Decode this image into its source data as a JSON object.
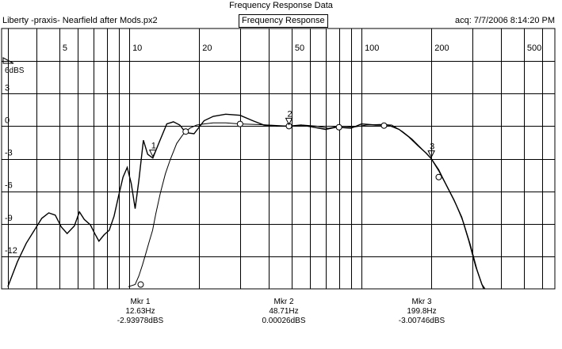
{
  "header": {
    "title": "Frequency Response Data",
    "file": "Liberty -praxis-  Nearfield after Mods.px2",
    "view": "Frequency Response",
    "acq": "acq: 7/7/2006 8:14:20 PM"
  },
  "markers": [
    {
      "label": "Mkr 1",
      "freq": "12.63Hz",
      "level": "-2.93978dBS",
      "num": "1",
      "x": 12.63,
      "y": -2.94
    },
    {
      "label": "Mkr 2",
      "freq": "48.71Hz",
      "level": "0.00026dBS",
      "num": "2",
      "x": 48.71,
      "y": 0.0
    },
    {
      "label": "Mkr 3",
      "freq": "199.8Hz",
      "level": "-3.00746dBS",
      "num": "3",
      "x": 199.8,
      "y": -3.01
    }
  ],
  "chart_data": {
    "type": "line",
    "x_scale": "log",
    "xlim": [
      2.82,
      680
    ],
    "ylim": [
      -15,
      9
    ],
    "ylabel": "6dBS",
    "x_ticks": [
      {
        "value": 5,
        "label": "5"
      },
      {
        "value": 10,
        "label": "10"
      },
      {
        "value": 20,
        "label": "20"
      },
      {
        "value": 50,
        "label": "50"
      },
      {
        "value": 100,
        "label": "100"
      },
      {
        "value": 200,
        "label": "200"
      },
      {
        "value": 500,
        "label": "500"
      }
    ],
    "y_ticks": [
      {
        "value": 3,
        "label": "3"
      },
      {
        "value": 0,
        "label": "0"
      },
      {
        "value": -3,
        "label": "-3"
      },
      {
        "value": -6,
        "label": "-6"
      },
      {
        "value": -9,
        "label": "-9"
      },
      {
        "value": -12,
        "label": "-12"
      }
    ],
    "grid": true,
    "series": [
      {
        "color": "#000000",
        "points": [
          [
            3.0,
            -14.8
          ],
          [
            3.3,
            -12.5
          ],
          [
            3.6,
            -10.8
          ],
          [
            3.9,
            -9.6
          ],
          [
            4.2,
            -8.5
          ],
          [
            4.5,
            -8.0
          ],
          [
            4.8,
            -8.2
          ],
          [
            5.1,
            -9.3
          ],
          [
            5.4,
            -9.9
          ],
          [
            5.8,
            -9.2
          ],
          [
            6.1,
            -7.9
          ],
          [
            6.4,
            -8.6
          ],
          [
            6.8,
            -9.1
          ],
          [
            7.1,
            -9.9
          ],
          [
            7.4,
            -10.6
          ],
          [
            7.8,
            -10.0
          ],
          [
            8.2,
            -9.6
          ],
          [
            8.6,
            -8.3
          ],
          [
            9.0,
            -6.4
          ],
          [
            9.4,
            -4.7
          ],
          [
            9.8,
            -3.8
          ],
          [
            10.2,
            -5.3
          ],
          [
            10.6,
            -7.6
          ],
          [
            11.0,
            -5.0
          ],
          [
            11.5,
            -1.3
          ],
          [
            12.0,
            -2.6
          ],
          [
            12.63,
            -2.94
          ],
          [
            13.5,
            -1.4
          ],
          [
            14.5,
            0.2
          ],
          [
            15.5,
            0.4
          ],
          [
            16.5,
            0.1
          ],
          [
            17.5,
            -0.6
          ],
          [
            19.0,
            -0.7
          ],
          [
            21,
            0.5
          ],
          [
            23,
            0.9
          ],
          [
            26,
            1.1
          ],
          [
            30,
            1.0
          ],
          [
            34,
            0.5
          ],
          [
            38,
            0.1
          ],
          [
            43,
            0.0
          ],
          [
            48.71,
            0.0
          ],
          [
            55,
            0.1
          ],
          [
            62,
            -0.1
          ],
          [
            70,
            -0.3
          ],
          [
            78,
            -0.1
          ],
          [
            90,
            -0.2
          ],
          [
            100,
            0.2
          ],
          [
            115,
            0.1
          ],
          [
            130,
            0.1
          ],
          [
            145,
            -0.3
          ],
          [
            160,
            -1.0
          ],
          [
            175,
            -1.8
          ],
          [
            190,
            -2.5
          ],
          [
            199.8,
            -3.0
          ],
          [
            215,
            -4.1
          ],
          [
            230,
            -5.3
          ],
          [
            250,
            -6.8
          ],
          [
            270,
            -8.4
          ],
          [
            290,
            -10.6
          ],
          [
            310,
            -12.9
          ],
          [
            330,
            -14.6
          ],
          [
            340,
            -15.0
          ]
        ]
      },
      {
        "color": "#000000",
        "points": [
          [
            9.9,
            -14.8
          ],
          [
            10.6,
            -14.6
          ],
          [
            11.0,
            -13.8
          ],
          [
            11.4,
            -12.8
          ],
          [
            11.8,
            -11.7
          ],
          [
            12.2,
            -10.6
          ],
          [
            12.6,
            -9.6
          ],
          [
            13.0,
            -8.1
          ],
          [
            13.6,
            -6.2
          ],
          [
            14.3,
            -4.4
          ],
          [
            15.0,
            -3.1
          ],
          [
            16.0,
            -1.6
          ],
          [
            17.0,
            -0.8
          ],
          [
            18.2,
            -0.2
          ],
          [
            19.5,
            0.1
          ],
          [
            21,
            0.2
          ],
          [
            23,
            0.3
          ],
          [
            26,
            0.3
          ],
          [
            30,
            0.2
          ],
          [
            35,
            0.15
          ],
          [
            40,
            0.1
          ],
          [
            48.71,
            0.0
          ],
          [
            56,
            0.1
          ],
          [
            64,
            0.0
          ],
          [
            72,
            -0.2
          ],
          [
            80,
            0.0
          ],
          [
            92,
            -0.1
          ],
          [
            105,
            0.1
          ],
          [
            120,
            0.15
          ],
          [
            135,
            0.1
          ],
          [
            150,
            -0.5
          ],
          [
            165,
            -1.2
          ],
          [
            180,
            -2.0
          ],
          [
            199.8,
            -3.0
          ],
          [
            215,
            -4.0
          ],
          [
            235,
            -5.7
          ],
          [
            255,
            -7.2
          ],
          [
            275,
            -8.9
          ],
          [
            295,
            -11.0
          ],
          [
            315,
            -13.3
          ],
          [
            335,
            -15.0
          ]
        ]
      }
    ],
    "circle_markers": [
      [
        11.2,
        -14.6
      ],
      [
        17.5,
        -0.5
      ],
      [
        30,
        0.2
      ],
      [
        48.71,
        0.0
      ],
      [
        80,
        -0.1
      ],
      [
        125,
        0.05
      ],
      [
        215,
        -4.7
      ]
    ]
  }
}
